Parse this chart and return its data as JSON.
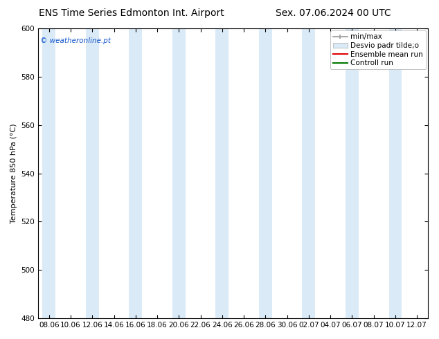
{
  "title_left": "ENS Time Series Edmonton Int. Airport",
  "title_right": "Sex. 07.06.2024 00 UTC",
  "ylabel": "Temperature 850 hPa (°C)",
  "ylim": [
    480,
    600
  ],
  "yticks": [
    480,
    500,
    520,
    540,
    560,
    580,
    600
  ],
  "x_labels": [
    "08.06",
    "10.06",
    "12.06",
    "14.06",
    "16.06",
    "18.06",
    "20.06",
    "22.06",
    "24.06",
    "26.06",
    "28.06",
    "30.06",
    "02.07",
    "04.07",
    "06.07",
    "08.07",
    "10.07",
    "12.07"
  ],
  "background_color": "#ffffff",
  "band_color": "#daeaf7",
  "watermark_text": "© weatheronline.pt",
  "watermark_color": "#1155cc",
  "legend_labels": [
    "min/max",
    "Desvio padr tilde;o",
    "Ensemble mean run",
    "Controll run"
  ],
  "title_fontsize": 10,
  "axis_fontsize": 8,
  "tick_fontsize": 7.5,
  "legend_fontsize": 7.5
}
